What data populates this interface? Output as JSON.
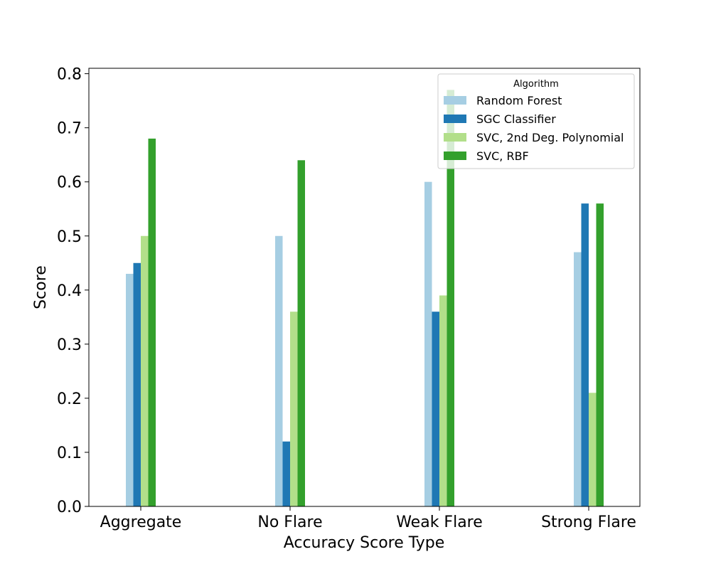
{
  "chart_data": {
    "type": "bar",
    "title": "",
    "xlabel": "Accuracy Score Type",
    "ylabel": "Score",
    "ylim": [
      0,
      0.81
    ],
    "yticks": [
      "0.0",
      "0.1",
      "0.2",
      "0.3",
      "0.4",
      "0.5",
      "0.6",
      "0.7",
      "0.8"
    ],
    "categories": [
      "Aggregate",
      "No Flare",
      "Weak Flare",
      "Strong Flare"
    ],
    "grid": false,
    "legend": {
      "title": "Algorithm",
      "placement": "top-right"
    },
    "series": [
      {
        "name": "Random Forest",
        "color": "#a6cee3",
        "values": [
          0.43,
          0.5,
          0.6,
          0.47
        ]
      },
      {
        "name": "SGC Classifier",
        "color": "#1f78b4",
        "values": [
          0.45,
          0.12,
          0.36,
          0.56
        ]
      },
      {
        "name": "SVC, 2nd Deg. Polynomial",
        "color": "#b2df8a",
        "values": [
          0.5,
          0.36,
          0.39,
          0.21
        ]
      },
      {
        "name": "SVC, RBF",
        "color": "#33a02c",
        "values": [
          0.68,
          0.64,
          0.77,
          0.56
        ]
      }
    ]
  }
}
